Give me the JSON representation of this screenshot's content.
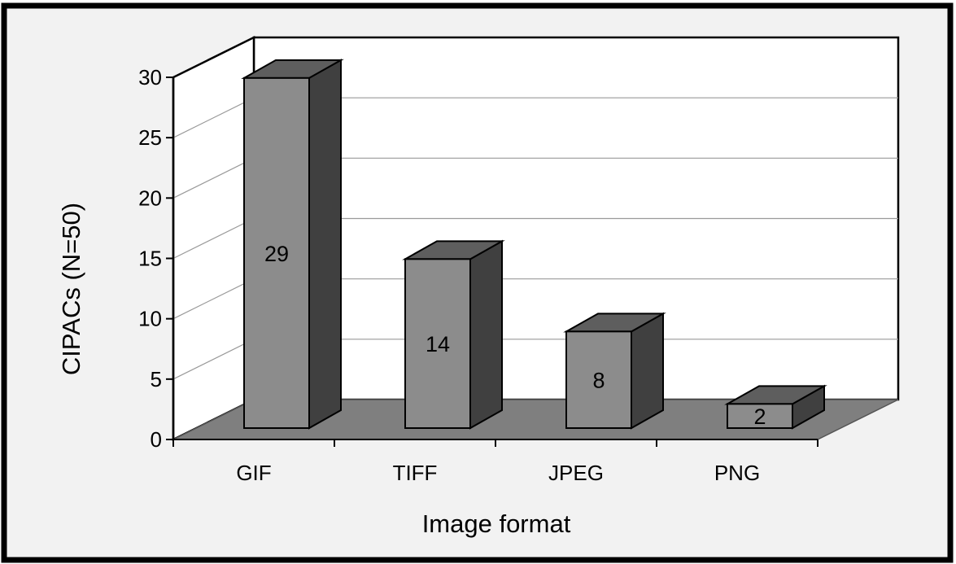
{
  "chart_data": {
    "type": "bar",
    "categories": [
      "GIF",
      "TIFF",
      "JPEG",
      "PNG"
    ],
    "values": [
      29,
      14,
      8,
      2
    ],
    "data_labels": [
      "29",
      "14",
      "8",
      "2"
    ],
    "xlabel": "Image format",
    "ylabel": "CIPACs (N=50)",
    "ylim": [
      0,
      30
    ],
    "yticks": [
      "0",
      "5",
      "10",
      "15",
      "20",
      "25",
      "30"
    ],
    "grid": true,
    "legend": "none",
    "style": "3d-column",
    "colors": {
      "bar_front": "#8c8c8c",
      "bar_top": "#5e5e5e",
      "bar_side": "#404040",
      "floor": "#7f7f7f",
      "background": "#f2f2f2",
      "plot_wall": "#ffffff"
    }
  }
}
